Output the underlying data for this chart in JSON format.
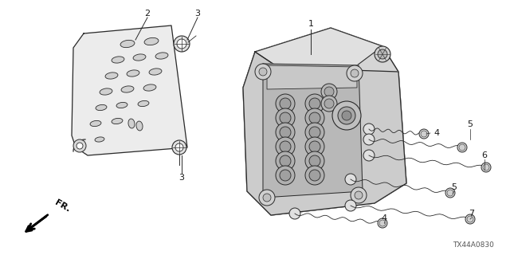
{
  "background_color": "#ffffff",
  "line_color": "#2a2a2a",
  "text_color": "#1a1a1a",
  "diagram_code": "TX44A0830",
  "figsize": [
    6.4,
    3.2
  ],
  "dpi": 100,
  "plate_color": "#e8e8e8",
  "body_color": "#d8d8d8",
  "body_inner_color": "#c0c0c0"
}
